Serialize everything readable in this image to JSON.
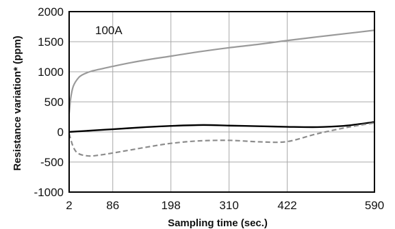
{
  "chart_data": {
    "type": "line",
    "title": "",
    "xlabel": "Sampling time (sec.)",
    "ylabel": "Resistance variation* (ppm)",
    "annotation": "100A",
    "xlim": [
      2,
      590
    ],
    "ylim": [
      -1000,
      2000
    ],
    "xticks": [
      2,
      86,
      198,
      310,
      422,
      590
    ],
    "yticks": [
      -1000,
      -500,
      0,
      500,
      1000,
      1500,
      2000
    ],
    "grid": true,
    "series": [
      {
        "color": "#9a9a9a",
        "dash": "solid",
        "width": 2.2,
        "x": [
          2,
          5,
          10,
          20,
          30,
          45,
          60,
          86,
          120,
          160,
          198,
          250,
          310,
          370,
          422,
          480,
          540,
          590
        ],
        "y": [
          300,
          560,
          760,
          900,
          960,
          1010,
          1040,
          1090,
          1150,
          1210,
          1260,
          1330,
          1400,
          1460,
          1520,
          1580,
          1640,
          1690
        ]
      },
      {
        "color": "#000000",
        "dash": "solid",
        "width": 2.4,
        "x": [
          2,
          30,
          86,
          150,
          198,
          260,
          310,
          370,
          422,
          480,
          530,
          560,
          590
        ],
        "y": [
          0,
          15,
          45,
          80,
          100,
          115,
          105,
          95,
          85,
          80,
          100,
          130,
          165
        ]
      },
      {
        "color": "#8c8c8c",
        "dash": "dashed",
        "width": 2.2,
        "x": [
          2,
          10,
          20,
          40,
          60,
          86,
          120,
          160,
          198,
          250,
          310,
          370,
          422,
          480,
          540,
          590
        ],
        "y": [
          -30,
          -250,
          -360,
          -400,
          -385,
          -350,
          -300,
          -240,
          -190,
          -150,
          -140,
          -165,
          -160,
          -30,
          80,
          150
        ]
      }
    ]
  }
}
